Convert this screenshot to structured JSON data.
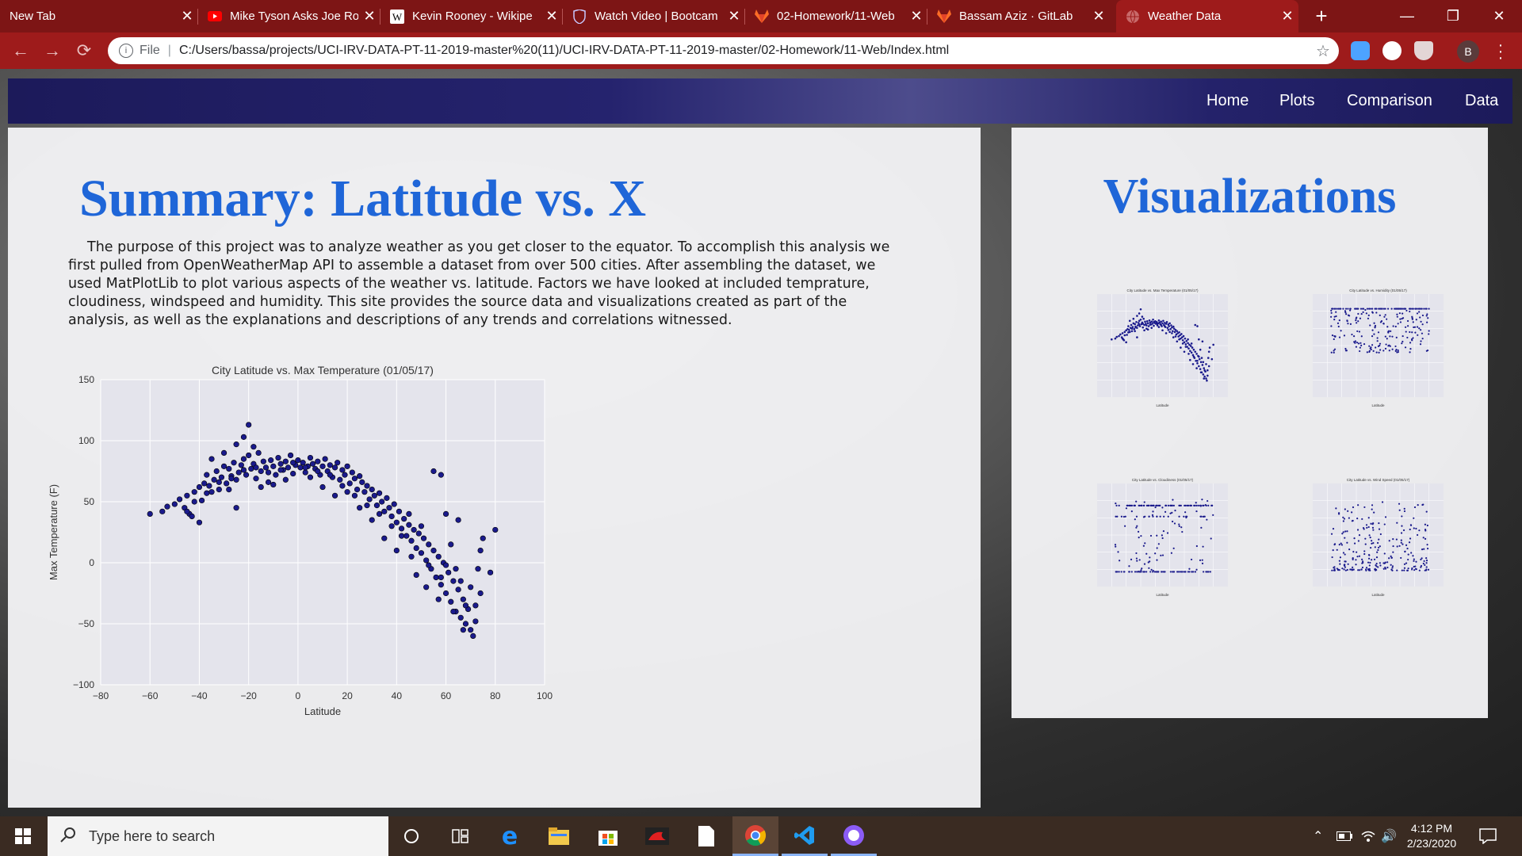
{
  "browser": {
    "tabs": [
      {
        "title": "New Tab",
        "icon": "none"
      },
      {
        "title": "Mike Tyson Asks Joe Ro",
        "icon": "youtube-icon"
      },
      {
        "title": "Kevin Rooney - Wikipe",
        "icon": "wikipedia-icon"
      },
      {
        "title": "Watch Video | Bootcam",
        "icon": "bootcamp-shield-icon"
      },
      {
        "title": "02-Homework/11-Web",
        "icon": "gitlab-icon"
      },
      {
        "title": "Bassam Aziz · GitLab",
        "icon": "gitlab-icon"
      },
      {
        "title": "Weather Data",
        "icon": "globe-icon"
      }
    ],
    "active_tab_index": 6,
    "address": {
      "scheme_label": "File",
      "url": "C:/Users/bassa/projects/UCI-IRV-DATA-PT-11-2019-master%20(11)/UCI-IRV-DATA-PT-11-2019-master/02-Homework/11-Web/Index.html"
    },
    "profile_initial": "B",
    "colors": {
      "frame": "#9e1b1b",
      "tabstrip": "#7d1515"
    }
  },
  "navbar": {
    "links": [
      "Home",
      "Plots",
      "Comparison",
      "Data"
    ]
  },
  "main": {
    "title": "Summary: Latitude vs. X",
    "paragraph": "The purpose of this project was to analyze weather as you get closer to the equator. To accomplish this analysis we first pulled from OpenWeatherMap API to assemble a dataset from over 500 cities. After assembling the dataset, we used MatPlotLib to plot various aspects of the weather vs. latitude. Factors we have looked at included temprature, cloudiness, windspeed and humidity. This site provides the source data and visualizations created as part of the analysis, as well as the explanations and descriptions of any trends and correlations witnessed."
  },
  "side": {
    "title": "Visualizations"
  },
  "chart_data": {
    "type": "scatter",
    "title": "City Latitude vs. Max Temperature (01/05/17)",
    "xlabel": "Latitude",
    "ylabel": "Max Temperature (F)",
    "xlim": [
      -80,
      100
    ],
    "ylim": [
      -100,
      150
    ],
    "xticks": [
      -80,
      -60,
      -40,
      -20,
      0,
      20,
      40,
      60,
      80,
      100
    ],
    "yticks": [
      -100,
      -50,
      0,
      50,
      100,
      150
    ],
    "grid": true,
    "marker_color": "#1a1a8c",
    "points": [
      [
        -55,
        42
      ],
      [
        -53,
        46
      ],
      [
        -50,
        48
      ],
      [
        -46,
        45
      ],
      [
        -45,
        55
      ],
      [
        -44,
        40
      ],
      [
        -42,
        58
      ],
      [
        -40,
        62
      ],
      [
        -39,
        51
      ],
      [
        -37,
        72
      ],
      [
        -36,
        63
      ],
      [
        -35,
        58
      ],
      [
        -34,
        68
      ],
      [
        -33,
        75
      ],
      [
        -32,
        60
      ],
      [
        -31,
        70
      ],
      [
        -30,
        79
      ],
      [
        -29,
        65
      ],
      [
        -28,
        77
      ],
      [
        -27,
        71
      ],
      [
        -26,
        82
      ],
      [
        -25,
        68
      ],
      [
        -24,
        74
      ],
      [
        -23,
        80
      ],
      [
        -22,
        85
      ],
      [
        -21,
        72
      ],
      [
        -20,
        88
      ],
      [
        -19,
        77
      ],
      [
        -18,
        81
      ],
      [
        -17,
        69
      ],
      [
        -16,
        90
      ],
      [
        -15,
        75
      ],
      [
        -14,
        83
      ],
      [
        -13,
        78
      ],
      [
        -12,
        66
      ],
      [
        -11,
        84
      ],
      [
        -10,
        79
      ],
      [
        -9,
        72
      ],
      [
        -8,
        86
      ],
      [
        -7,
        81
      ],
      [
        -6,
        76
      ],
      [
        -5,
        83
      ],
      [
        -4,
        78
      ],
      [
        -3,
        88
      ],
      [
        -2,
        73
      ],
      [
        -1,
        80
      ],
      [
        0,
        84
      ],
      [
        1,
        78
      ],
      [
        2,
        82
      ],
      [
        3,
        74
      ],
      [
        4,
        79
      ],
      [
        5,
        86
      ],
      [
        6,
        81
      ],
      [
        7,
        77
      ],
      [
        8,
        83
      ],
      [
        9,
        72
      ],
      [
        10,
        79
      ],
      [
        11,
        85
      ],
      [
        12,
        75
      ],
      [
        13,
        80
      ],
      [
        14,
        70
      ],
      [
        15,
        78
      ],
      [
        16,
        82
      ],
      [
        17,
        68
      ],
      [
        18,
        76
      ],
      [
        19,
        72
      ],
      [
        20,
        79
      ],
      [
        21,
        65
      ],
      [
        22,
        74
      ],
      [
        23,
        69
      ],
      [
        24,
        60
      ],
      [
        25,
        71
      ],
      [
        26,
        66
      ],
      [
        27,
        58
      ],
      [
        28,
        63
      ],
      [
        29,
        52
      ],
      [
        30,
        60
      ],
      [
        31,
        55
      ],
      [
        32,
        47
      ],
      [
        33,
        57
      ],
      [
        34,
        50
      ],
      [
        35,
        42
      ],
      [
        36,
        53
      ],
      [
        37,
        45
      ],
      [
        38,
        38
      ],
      [
        39,
        48
      ],
      [
        40,
        33
      ],
      [
        41,
        42
      ],
      [
        42,
        28
      ],
      [
        43,
        36
      ],
      [
        44,
        22
      ],
      [
        45,
        31
      ],
      [
        46,
        18
      ],
      [
        47,
        27
      ],
      [
        48,
        12
      ],
      [
        49,
        24
      ],
      [
        50,
        8
      ],
      [
        51,
        20
      ],
      [
        52,
        2
      ],
      [
        53,
        15
      ],
      [
        54,
        -5
      ],
      [
        55,
        10
      ],
      [
        56,
        -12
      ],
      [
        57,
        5
      ],
      [
        58,
        -18
      ],
      [
        59,
        0
      ],
      [
        60,
        -25
      ],
      [
        61,
        -8
      ],
      [
        62,
        -32
      ],
      [
        63,
        -15
      ],
      [
        64,
        -40
      ],
      [
        65,
        -22
      ],
      [
        66,
        -45
      ],
      [
        67,
        -30
      ],
      [
        68,
        -50
      ],
      [
        69,
        -38
      ],
      [
        70,
        -55
      ],
      [
        71,
        -60
      ],
      [
        72,
        -48
      ],
      [
        73,
        -5
      ],
      [
        74,
        10
      ],
      [
        75,
        20
      ],
      [
        78,
        -8
      ],
      [
        80,
        27
      ],
      [
        -60,
        40
      ],
      [
        -48,
        52
      ],
      [
        -43,
        38
      ],
      [
        -38,
        65
      ],
      [
        -28,
        60
      ],
      [
        -25,
        97
      ],
      [
        -22,
        103
      ],
      [
        -20,
        113
      ],
      [
        -18,
        95
      ],
      [
        -30,
        90
      ],
      [
        -35,
        85
      ],
      [
        -15,
        62
      ],
      [
        -25,
        45
      ],
      [
        -10,
        64
      ],
      [
        20,
        58
      ],
      [
        15,
        55
      ],
      [
        10,
        62
      ],
      [
        5,
        70
      ],
      [
        -5,
        68
      ],
      [
        55,
        75
      ],
      [
        58,
        72
      ],
      [
        45,
        40
      ],
      [
        50,
        30
      ],
      [
        60,
        40
      ],
      [
        65,
        35
      ],
      [
        62,
        15
      ],
      [
        57,
        -30
      ],
      [
        66,
        -15
      ],
      [
        68,
        -35
      ],
      [
        35,
        20
      ],
      [
        40,
        10
      ],
      [
        48,
        -10
      ],
      [
        52,
        -20
      ],
      [
        -40,
        33
      ],
      [
        -45,
        42
      ],
      [
        25,
        45
      ],
      [
        30,
        35
      ],
      [
        60,
        -2
      ],
      [
        64,
        -5
      ],
      [
        70,
        -20
      ],
      [
        72,
        -35
      ],
      [
        74,
        -25
      ],
      [
        67,
        -55
      ],
      [
        63,
        -40
      ],
      [
        58,
        -12
      ],
      [
        53,
        -2
      ],
      [
        46,
        5
      ],
      [
        42,
        22
      ],
      [
        38,
        30
      ],
      [
        33,
        40
      ],
      [
        28,
        47
      ],
      [
        23,
        55
      ],
      [
        18,
        63
      ],
      [
        13,
        72
      ],
      [
        8,
        75
      ],
      [
        3,
        78
      ],
      [
        -2,
        82
      ],
      [
        -7,
        76
      ],
      [
        -12,
        74
      ],
      [
        -17,
        78
      ],
      [
        -22,
        76
      ],
      [
        -27,
        69
      ],
      [
        -32,
        66
      ],
      [
        -37,
        57
      ],
      [
        -42,
        50
      ]
    ]
  },
  "thumbnails": [
    {
      "title": "City Latitude vs. Max Temperature (01/05/17)",
      "kind": "temp"
    },
    {
      "title": "City Latitude vs. Humidity (01/05/17)",
      "kind": "humidity"
    },
    {
      "title": "City Latitude vs. Cloudiness (01/05/17)",
      "kind": "cloud"
    },
    {
      "title": "City Latitude vs. Wind Speed (01/05/17)",
      "kind": "wind"
    }
  ],
  "taskbar": {
    "search_placeholder": "Type here to search",
    "time": "4:12 PM",
    "date": "2/23/2020"
  }
}
